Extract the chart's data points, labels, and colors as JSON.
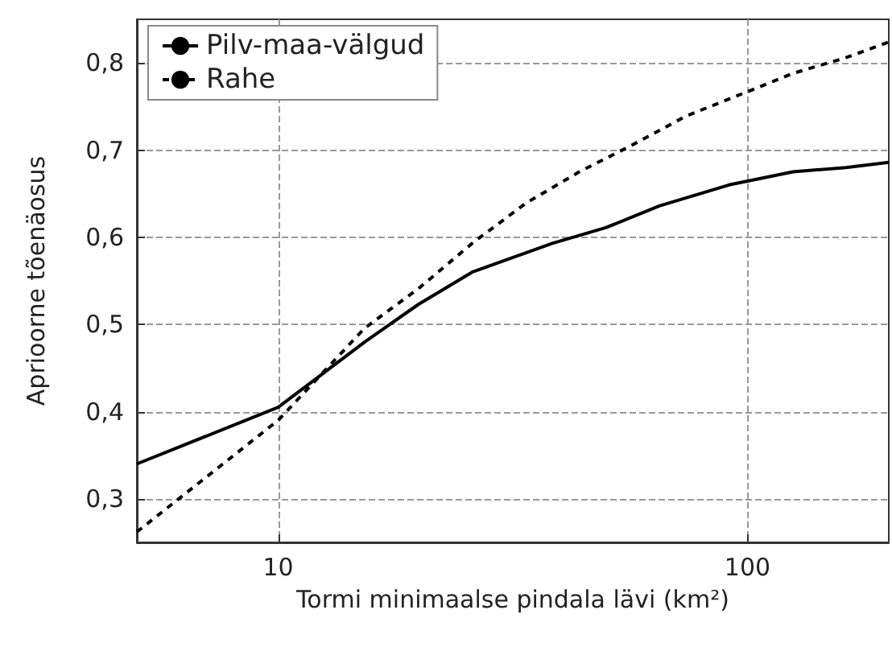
{
  "chart_data": {
    "type": "line",
    "xlabel": "Tormi minimaalse pindala lävi (km²)",
    "ylabel": "Aprioorne tõenäosus",
    "log": "x",
    "grid": true,
    "legend": "top left",
    "marker": "none",
    "xlim": [
      5,
      200
    ],
    "xticks": [
      10,
      100
    ],
    "ylim": [
      0.25,
      0.85
    ],
    "yticks": [
      {
        "value": 0.3,
        "label": "0,3"
      },
      {
        "value": 0.4,
        "label": "0,4"
      },
      {
        "value": 0.5,
        "label": "0,5"
      },
      {
        "value": 0.6,
        "label": "0,6"
      },
      {
        "value": 0.7,
        "label": "0,7"
      },
      {
        "value": 0.8,
        "label": "0,8"
      }
    ],
    "series": [
      {
        "name": "Pilv-maa-välgud",
        "color": "#000000",
        "line_style": "solid",
        "x": [
          5,
          10,
          15.3,
          19.9,
          25.9,
          38.4,
          49.9,
          64.9,
          91.3,
          125,
          162,
          200
        ],
        "values": [
          0.34,
          0.405,
          0.48,
          0.523,
          0.56,
          0.593,
          0.611,
          0.636,
          0.66,
          0.675,
          0.68,
          0.686
        ]
      },
      {
        "name": "Rahe",
        "color": "#000000",
        "line_style": "dashed",
        "x": [
          5,
          10,
          15.3,
          19.9,
          25.9,
          33.7,
          43.8,
          56.9,
          74,
          100,
          125,
          162,
          200
        ],
        "values": [
          0.262,
          0.39,
          0.496,
          0.541,
          0.593,
          0.639,
          0.675,
          0.706,
          0.739,
          0.767,
          0.788,
          0.806,
          0.824
        ]
      }
    ]
  }
}
